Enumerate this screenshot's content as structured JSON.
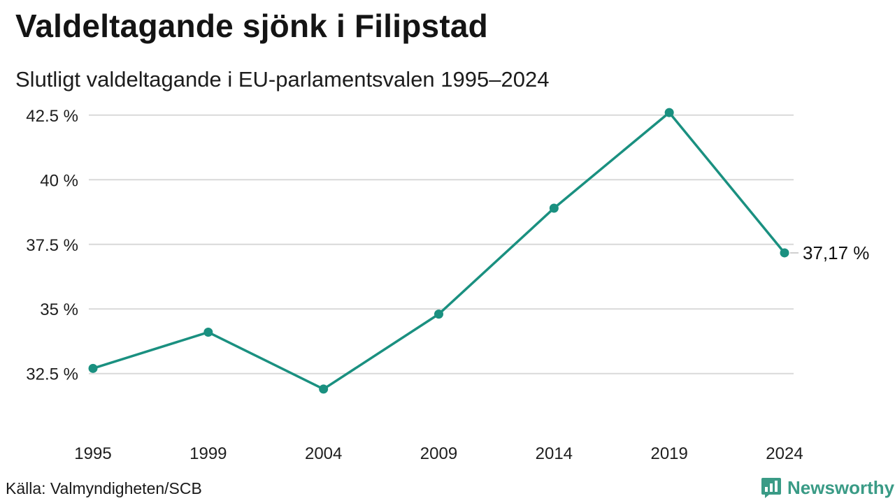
{
  "title": "Valdeltagande sjönk i Filipstad",
  "subtitle": "Slutligt valdeltagande i EU-parlamentsvalen 1995–2024",
  "source": "Källa: Valmyndigheten/SCB",
  "brand": {
    "name": "Newsworthy",
    "icon": "newsworthy-logo-icon",
    "color": "#3a9b86"
  },
  "chart_data": {
    "type": "line",
    "categories": [
      "1995",
      "1999",
      "2004",
      "2009",
      "2014",
      "2019",
      "2024"
    ],
    "series": [
      {
        "values": [
          32.7,
          34.1,
          31.9,
          34.8,
          38.9,
          42.6,
          37.17
        ],
        "color": "#1a9080"
      }
    ],
    "ylim": [
      30.6,
      42.9
    ],
    "yticks": [
      32.5,
      35,
      37.5,
      40,
      42.5
    ],
    "ytick_labels": [
      "32.5 %",
      "35 %",
      "37.5 %",
      "40 %",
      "42.5 %"
    ],
    "end_label": "37,17 %",
    "grid": true,
    "xlabel": "",
    "ylabel": ""
  }
}
